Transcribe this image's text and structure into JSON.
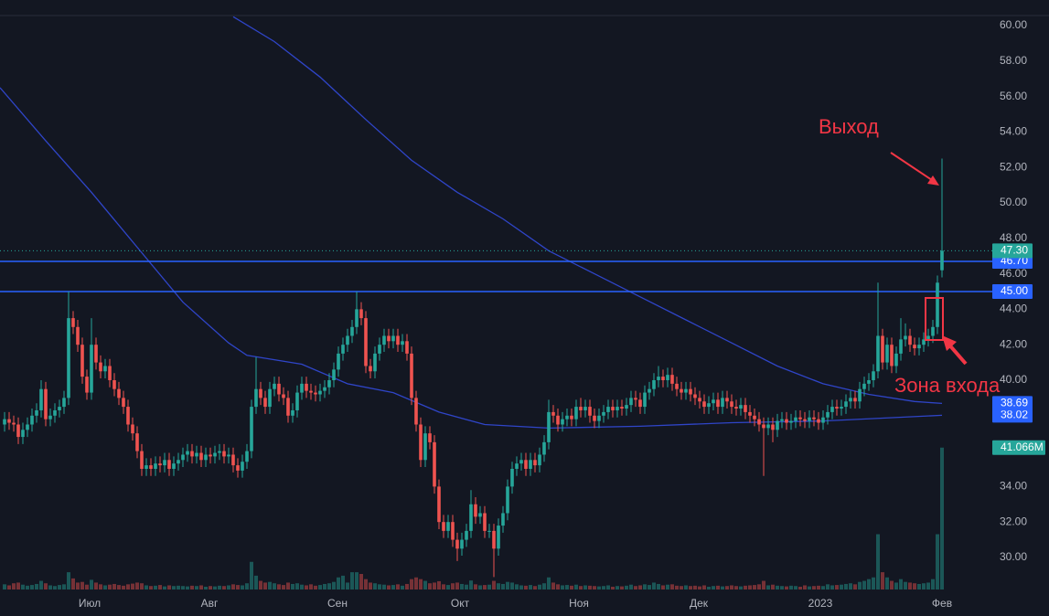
{
  "chart_data": {
    "type": "candlestick",
    "up_color": "#26a69a",
    "down_color": "#ef5350",
    "xlim": [
      -1,
      216
    ],
    "ylim": [
      28.2,
      60.5
    ],
    "xticks": [
      {
        "value": 18.6,
        "label": "Июл"
      },
      {
        "value": 44.8,
        "label": "Авг"
      },
      {
        "value": 72.8,
        "label": "Сен"
      },
      {
        "value": 99.6,
        "label": "Окт"
      },
      {
        "value": 125.6,
        "label": "Ноя"
      },
      {
        "value": 151.8,
        "label": "Дек"
      },
      {
        "value": 178.4,
        "label": "2023"
      },
      {
        "value": 205,
        "label": "Фев"
      }
    ],
    "yticks": [
      {
        "value": 30,
        "label": "30.00"
      },
      {
        "value": 32,
        "label": "32.00"
      },
      {
        "value": 34,
        "label": "34.00"
      },
      {
        "value": 36,
        "label": "36.00"
      },
      {
        "value": 38,
        "label": "38.00"
      },
      {
        "value": 40,
        "label": "40.00"
      },
      {
        "value": 42,
        "label": "42.00"
      },
      {
        "value": 44,
        "label": "44.00"
      },
      {
        "value": 46,
        "label": "46.00"
      },
      {
        "value": 48,
        "label": "48.00"
      },
      {
        "value": 50,
        "label": "50.00"
      },
      {
        "value": 52,
        "label": "52.00"
      },
      {
        "value": 54,
        "label": "54.00"
      },
      {
        "value": 56,
        "label": "56.00"
      },
      {
        "value": 58,
        "label": "58.00"
      },
      {
        "value": 60,
        "label": "60.00"
      }
    ],
    "open": [
      37.5,
      37.8,
      37.6,
      37.5,
      36.8,
      37.2,
      37.5,
      38.0,
      38.3,
      39.5,
      37.8,
      38.0,
      38.3,
      38.5,
      39.0,
      43.5,
      43.0,
      42.0,
      40.2,
      39.3,
      42.0,
      41.0,
      40.5,
      40.8,
      40.0,
      39.5,
      39.0,
      38.5,
      37.5,
      37.0,
      36.0,
      35.0,
      35.2,
      35.0,
      35.3,
      35.2,
      35.5,
      35.0,
      35.3,
      35.5,
      35.8,
      36.0,
      35.7,
      35.9,
      35.5,
      35.8,
      35.7,
      35.9,
      36.0,
      35.7,
      35.8,
      35.2,
      34.9,
      35.4,
      36.0,
      38.5,
      39.5,
      39.0,
      38.5,
      39.5,
      39.8,
      39.2,
      39.0,
      38.0,
      38.3,
      39.3,
      39.8,
      39.4,
      39.3,
      39.2,
      39.4,
      39.6,
      40.0,
      40.6,
      41.5,
      42.0,
      42.5,
      43.0,
      44.0,
      43.5,
      40.8,
      40.5,
      41.5,
      42.0,
      42.5,
      42.2,
      42.5,
      42.0,
      42.2,
      41.5,
      39.0,
      37.5,
      35.5,
      37.0,
      36.5,
      34.0,
      32.0,
      31.5,
      32.0,
      31.0,
      30.5,
      31.0,
      31.5,
      33.0,
      32.3,
      32.5,
      31.5,
      31.5,
      30.5,
      31.8,
      32.5,
      34.0,
      35.0,
      35.3,
      35.5,
      35.0,
      35.5,
      35.2,
      35.8,
      36.5,
      38.2,
      38.0,
      37.5,
      37.8,
      38.0,
      37.8,
      38.5,
      38.3,
      38.5,
      38.0,
      37.7,
      38.0,
      38.2,
      38.5,
      38.3,
      38.5,
      38.4,
      38.6,
      39.0,
      38.9,
      38.5,
      39.3,
      39.5,
      40.0,
      40.2,
      40.0,
      40.3,
      39.8,
      39.5,
      39.3,
      39.5,
      39.2,
      39.0,
      38.8,
      38.5,
      38.7,
      38.9,
      38.5,
      39.0,
      38.8,
      38.5,
      38.4,
      38.6,
      38.2,
      38.0,
      37.8,
      37.5,
      37.3,
      37.5,
      37.2,
      37.7,
      37.8,
      37.6,
      37.7,
      37.9,
      37.8,
      37.7,
      37.9,
      37.8,
      37.6,
      37.9,
      38.2,
      38.5,
      38.4,
      38.5,
      38.8,
      39.0,
      38.8,
      39.5,
      39.8,
      40.0,
      40.5,
      42.5,
      41.0,
      42.0,
      40.8,
      41.5,
      42.3,
      42.5,
      42.0,
      41.8,
      42.0,
      42.3,
      42.5,
      43.0,
      46.2
    ],
    "high": [
      38.2,
      38.2,
      38.0,
      37.9,
      37.6,
      37.9,
      38.4,
      38.7,
      40.0,
      39.9,
      38.4,
      38.7,
      38.9,
      39.4,
      45.0,
      43.9,
      43.4,
      42.4,
      40.6,
      43.5,
      42.4,
      41.4,
      41.2,
      41.2,
      40.4,
      39.9,
      39.4,
      38.9,
      37.9,
      37.4,
      36.4,
      35.6,
      35.6,
      35.7,
      35.7,
      35.9,
      35.9,
      35.7,
      35.9,
      36.2,
      36.4,
      36.4,
      36.3,
      36.3,
      36.2,
      36.2,
      36.3,
      36.4,
      36.4,
      36.2,
      36.2,
      35.6,
      35.8,
      36.4,
      38.9,
      41.3,
      39.9,
      39.4,
      39.9,
      40.2,
      40.2,
      39.6,
      39.4,
      38.7,
      39.7,
      40.2,
      40.2,
      39.8,
      39.7,
      39.8,
      40.0,
      40.4,
      41.0,
      41.9,
      42.4,
      42.9,
      43.4,
      45.0,
      44.4,
      43.9,
      41.2,
      41.9,
      42.4,
      42.9,
      42.9,
      42.9,
      42.9,
      42.6,
      42.6,
      41.9,
      39.4,
      37.9,
      37.4,
      37.4,
      36.9,
      34.4,
      32.4,
      32.4,
      32.4,
      31.4,
      31.4,
      31.9,
      33.8,
      33.4,
      32.9,
      32.9,
      31.9,
      31.9,
      32.2,
      32.9,
      34.4,
      35.4,
      35.7,
      35.9,
      35.9,
      35.9,
      35.9,
      36.2,
      36.9,
      38.9,
      38.6,
      38.4,
      38.2,
      38.4,
      38.4,
      38.9,
      39.0,
      38.9,
      38.9,
      38.4,
      38.4,
      38.6,
      38.9,
      38.9,
      38.9,
      38.9,
      39.0,
      39.4,
      39.4,
      39.3,
      39.7,
      39.9,
      40.4,
      40.8,
      40.6,
      40.7,
      40.7,
      40.2,
      39.9,
      39.9,
      39.9,
      39.6,
      39.4,
      39.2,
      39.1,
      39.3,
      39.3,
      39.4,
      39.4,
      39.2,
      38.9,
      39.0,
      39.0,
      38.6,
      38.4,
      38.2,
      37.9,
      37.9,
      37.9,
      38.1,
      38.2,
      38.2,
      38.1,
      38.3,
      38.3,
      38.2,
      38.3,
      38.3,
      38.2,
      38.3,
      38.6,
      38.9,
      38.9,
      38.9,
      39.2,
      39.4,
      39.4,
      39.9,
      40.2,
      40.4,
      40.9,
      45.5,
      42.9,
      42.4,
      42.4,
      41.9,
      43.5,
      43.2,
      42.9,
      42.4,
      42.4,
      42.7,
      42.9,
      43.4,
      45.9,
      52.5
    ],
    "low": [
      37.1,
      37.2,
      37.1,
      36.4,
      36.4,
      36.8,
      37.1,
      37.6,
      37.9,
      37.4,
      37.4,
      37.6,
      37.9,
      38.1,
      38.6,
      42.6,
      41.6,
      39.8,
      38.9,
      38.9,
      40.6,
      40.1,
      40.1,
      39.6,
      39.1,
      38.6,
      38.1,
      37.1,
      36.6,
      35.6,
      34.6,
      34.6,
      34.6,
      34.6,
      34.8,
      34.8,
      34.6,
      34.6,
      34.9,
      35.1,
      35.4,
      35.3,
      35.3,
      35.1,
      35.1,
      35.3,
      35.3,
      35.5,
      35.3,
      35.3,
      34.8,
      34.5,
      34.5,
      35.0,
      35.6,
      38.1,
      38.6,
      38.1,
      38.1,
      39.1,
      38.8,
      38.6,
      37.6,
      37.6,
      37.9,
      38.9,
      39.0,
      38.9,
      38.8,
      38.8,
      39.0,
      39.2,
      39.6,
      40.2,
      41.1,
      41.6,
      42.1,
      42.6,
      43.1,
      40.4,
      40.1,
      40.1,
      41.1,
      41.6,
      41.8,
      41.8,
      41.6,
      41.6,
      41.1,
      38.6,
      37.1,
      35.1,
      35.1,
      36.1,
      33.6,
      31.6,
      31.1,
      31.1,
      30.6,
      29.8,
      30.1,
      30.6,
      31.1,
      31.9,
      31.9,
      31.1,
      31.1,
      28.9,
      30.1,
      31.4,
      32.1,
      33.6,
      34.6,
      34.9,
      34.6,
      34.6,
      34.8,
      34.8,
      35.4,
      36.1,
      37.6,
      37.1,
      37.1,
      37.4,
      37.4,
      37.4,
      37.9,
      37.9,
      37.6,
      37.3,
      37.3,
      37.6,
      37.8,
      37.9,
      37.9,
      38.0,
      38.0,
      38.2,
      38.5,
      38.1,
      38.1,
      38.9,
      39.1,
      39.6,
      39.6,
      39.6,
      39.4,
      39.1,
      38.9,
      38.9,
      38.8,
      38.6,
      38.4,
      38.1,
      38.1,
      38.3,
      38.1,
      38.1,
      38.4,
      38.1,
      38.0,
      38.0,
      37.8,
      37.6,
      37.4,
      37.1,
      34.6,
      36.9,
      36.5,
      36.8,
      37.3,
      37.2,
      37.2,
      37.3,
      37.4,
      37.3,
      37.3,
      37.4,
      37.2,
      37.2,
      37.5,
      37.8,
      38.0,
      38.0,
      38.1,
      38.4,
      38.4,
      38.4,
      39.1,
      39.4,
      39.6,
      40.1,
      40.6,
      40.6,
      40.4,
      40.4,
      41.1,
      41.9,
      41.6,
      41.4,
      41.4,
      41.6,
      41.9,
      42.1,
      42.6,
      45.8
    ],
    "close": [
      37.8,
      37.6,
      37.5,
      36.8,
      37.2,
      37.5,
      38.0,
      38.3,
      39.5,
      37.8,
      38.0,
      38.3,
      38.5,
      39.0,
      43.5,
      43.0,
      42.0,
      40.2,
      39.3,
      42.0,
      41.0,
      40.5,
      40.8,
      40.0,
      39.5,
      39.0,
      38.5,
      37.5,
      37.0,
      36.0,
      35.0,
      35.2,
      35.0,
      35.3,
      35.2,
      35.5,
      35.0,
      35.3,
      35.5,
      35.8,
      36.0,
      35.7,
      35.9,
      35.5,
      35.8,
      35.7,
      35.9,
      36.0,
      35.7,
      35.8,
      35.2,
      34.9,
      35.4,
      36.0,
      38.5,
      39.5,
      39.0,
      38.5,
      39.5,
      39.8,
      39.2,
      39.0,
      38.0,
      38.3,
      39.3,
      39.8,
      39.4,
      39.3,
      39.2,
      39.4,
      39.6,
      40.0,
      40.6,
      41.5,
      42.0,
      42.5,
      43.0,
      44.0,
      43.5,
      40.8,
      40.5,
      41.5,
      42.0,
      42.5,
      42.2,
      42.5,
      42.0,
      42.2,
      41.5,
      39.0,
      37.5,
      35.5,
      37.0,
      36.5,
      34.0,
      32.0,
      31.5,
      32.0,
      31.0,
      30.5,
      31.0,
      31.5,
      33.0,
      32.3,
      32.5,
      31.5,
      31.5,
      30.5,
      31.8,
      32.5,
      34.0,
      35.0,
      35.3,
      35.5,
      35.0,
      35.5,
      35.2,
      35.8,
      36.5,
      38.2,
      38.0,
      37.5,
      37.8,
      38.0,
      37.8,
      38.5,
      38.3,
      38.5,
      38.0,
      37.7,
      38.0,
      38.2,
      38.5,
      38.3,
      38.5,
      38.4,
      38.6,
      39.0,
      38.9,
      38.5,
      39.3,
      39.5,
      40.0,
      40.2,
      40.0,
      40.3,
      39.8,
      39.5,
      39.3,
      39.5,
      39.2,
      39.0,
      38.8,
      38.5,
      38.7,
      38.9,
      38.5,
      39.0,
      38.8,
      38.5,
      38.4,
      38.6,
      38.2,
      38.0,
      37.8,
      37.5,
      37.3,
      37.5,
      37.2,
      37.7,
      37.8,
      37.6,
      37.7,
      37.9,
      37.8,
      37.7,
      37.9,
      37.8,
      37.6,
      37.9,
      38.2,
      38.5,
      38.4,
      38.5,
      38.8,
      39.0,
      38.8,
      39.5,
      39.8,
      40.0,
      40.5,
      42.5,
      41.0,
      42.0,
      40.8,
      41.5,
      42.3,
      42.5,
      42.0,
      41.8,
      42.0,
      42.3,
      42.5,
      43.0,
      45.5,
      47.3
    ],
    "last_price_label": "47.30",
    "volume": {
      "values": [
        1.5,
        1.2,
        1.8,
        2.0,
        1.4,
        1.1,
        1.3,
        1.6,
        2.5,
        1.8,
        1.2,
        1.0,
        1.3,
        1.5,
        5.0,
        3.2,
        2.0,
        2.2,
        1.4,
        2.8,
        2.0,
        1.5,
        1.2,
        1.4,
        1.6,
        1.3,
        1.1,
        1.5,
        1.7,
        2.0,
        1.8,
        1.2,
        1.0,
        1.1,
        1.3,
        0.9,
        1.2,
        1.0,
        1.1,
        1.0,
        0.9,
        1.1,
        1.0,
        1.2,
        0.8,
        1.0,
        0.9,
        1.1,
        1.0,
        1.2,
        1.5,
        1.3,
        1.2,
        1.8,
        8.0,
        4.0,
        2.5,
        2.0,
        2.2,
        1.8,
        1.5,
        1.3,
        2.0,
        1.6,
        1.8,
        1.4,
        1.2,
        1.5,
        1.1,
        1.3,
        1.6,
        1.8,
        2.2,
        3.5,
        4.0,
        2.0,
        5.0,
        5.0,
        4.5,
        3.0,
        2.0,
        1.8,
        1.5,
        1.4,
        1.2,
        1.3,
        1.5,
        1.1,
        1.6,
        3.0,
        3.5,
        3.0,
        2.5,
        1.8,
        2.0,
        2.4,
        1.5,
        1.3,
        1.8,
        2.0,
        1.6,
        1.4,
        2.6,
        1.5,
        1.2,
        1.3,
        1.4,
        2.5,
        1.8,
        1.6,
        2.2,
        2.0,
        1.5,
        1.2,
        1.1,
        1.3,
        1.0,
        1.4,
        1.8,
        3.5,
        2.0,
        1.5,
        1.2,
        1.3,
        1.1,
        1.4,
        1.0,
        1.2,
        1.1,
        1.0,
        0.9,
        1.0,
        1.2,
        0.8,
        1.0,
        0.9,
        1.1,
        1.4,
        1.0,
        1.2,
        1.5,
        1.3,
        2.0,
        1.6,
        1.2,
        1.4,
        1.5,
        1.1,
        1.0,
        1.2,
        1.0,
        1.1,
        0.9,
        1.2,
        0.8,
        1.0,
        1.1,
        0.9,
        1.0,
        1.2,
        1.0,
        0.9,
        1.1,
        1.2,
        1.3,
        1.5,
        2.5,
        1.2,
        1.4,
        1.1,
        1.0,
        0.9,
        1.1,
        1.0,
        0.8,
        1.2,
        0.9,
        1.0,
        1.1,
        1.0,
        1.5,
        1.2,
        1.3,
        1.4,
        1.6,
        1.8,
        1.5,
        2.2,
        2.5,
        3.0,
        3.5,
        16.0,
        5.0,
        3.5,
        2.5,
        2.0,
        3.0,
        2.2,
        2.0,
        1.8,
        1.6,
        1.8,
        2.0,
        3.0,
        16.0,
        41.066
      ],
      "last_value_label": "41.066M"
    },
    "moving_averages": [
      {
        "color": "#2f45c8",
        "x": [
          -1,
          9,
          19,
          29,
          39,
          49,
          53,
          65,
          75,
          85,
          95,
          105,
          119,
          139,
          159,
          179,
          205
        ],
        "values": [
          56.5,
          53.5,
          50.6,
          47.5,
          44.4,
          42.1,
          41.4,
          40.9,
          39.8,
          39.3,
          38.2,
          37.5,
          37.3,
          37.4,
          37.6,
          37.7,
          38.02
        ],
        "last_value_label": "38.02"
      },
      {
        "color": "#2f45c8",
        "x": [
          50,
          59,
          69,
          79,
          89,
          99,
          109,
          119,
          129,
          139,
          149,
          159,
          169,
          179,
          189,
          199,
          205
        ],
        "values": [
          60.5,
          59.1,
          57.1,
          54.7,
          52.4,
          50.6,
          49.1,
          47.3,
          46.0,
          44.7,
          43.4,
          42.1,
          40.8,
          39.8,
          39.2,
          38.8,
          38.69
        ],
        "last_value_label": "38.69"
      }
    ],
    "hlines": [
      {
        "value": 46.7,
        "label": "46.70",
        "color": "#2962ff"
      },
      {
        "value": 45,
        "label": "45.00",
        "color": "#2962ff"
      }
    ],
    "annotations": [
      "Выход",
      "Зона входа"
    ]
  }
}
